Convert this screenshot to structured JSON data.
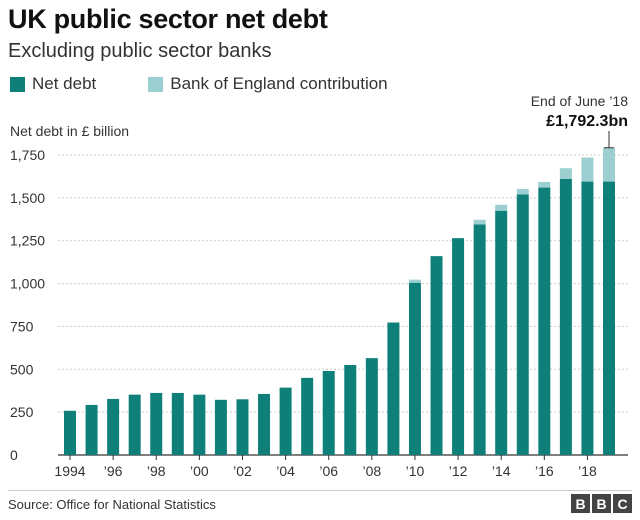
{
  "header": {
    "title": "UK public sector net debt",
    "subtitle": "Excluding public sector banks"
  },
  "legend": {
    "net_debt_label": "Net debt",
    "boe_label": "Bank of England contribution"
  },
  "colors": {
    "net_debt": "#0f8079",
    "boe": "#9ccfcf",
    "gridline": "#cccccc",
    "axis": "#333333"
  },
  "annotation": {
    "line1": "End of June ’18",
    "line2": "£1,792.3bn"
  },
  "source": "Source: Office for National Statistics",
  "logo": [
    "B",
    "B",
    "C"
  ],
  "chart_data": {
    "type": "bar",
    "stacked": true,
    "title": "UK public sector net debt",
    "subtitle": "Excluding public sector banks",
    "ylabel": "Net debt in £ billion",
    "ylim": [
      0,
      1750
    ],
    "yticks": [
      0,
      250,
      500,
      750,
      1000,
      1250,
      1500,
      1750
    ],
    "ytick_labels": [
      "0",
      "250",
      "500",
      "750",
      "1,000",
      "1,250",
      "1,500",
      "1,750"
    ],
    "grid": true,
    "legend_position": "top-left",
    "categories": [
      "1994",
      "1995",
      "1996",
      "1997",
      "1998",
      "1999",
      "2000",
      "2001",
      "2002",
      "2003",
      "2004",
      "2005",
      "2006",
      "2007",
      "2008",
      "2009",
      "2010",
      "2011",
      "2012",
      "2013",
      "2014",
      "2015",
      "2016",
      "2017",
      "2018",
      "June 2018"
    ],
    "xtick_labels": [
      "1994",
      "",
      "’96",
      "",
      "’98",
      "",
      "’00",
      "",
      "’02",
      "",
      "’04",
      "",
      "’06",
      "",
      "’08",
      "",
      "’10",
      "",
      "’12",
      "",
      "’14",
      "",
      "’16",
      "",
      "’18",
      ""
    ],
    "series": [
      {
        "name": "Net debt",
        "values": [
          258,
          292,
          327,
          352,
          362,
          362,
          352,
          322,
          325,
          356,
          393,
          450,
          490,
          525,
          565,
          773,
          1005,
          1160,
          1265,
          1345,
          1425,
          1520,
          1560,
          1610,
          1595,
          1595
        ]
      },
      {
        "name": "Bank of England contribution",
        "values": [
          0,
          0,
          0,
          0,
          0,
          0,
          0,
          0,
          0,
          0,
          0,
          0,
          0,
          0,
          0,
          0,
          18,
          0,
          0,
          27,
          35,
          32,
          33,
          63,
          140,
          197.3
        ]
      }
    ]
  }
}
